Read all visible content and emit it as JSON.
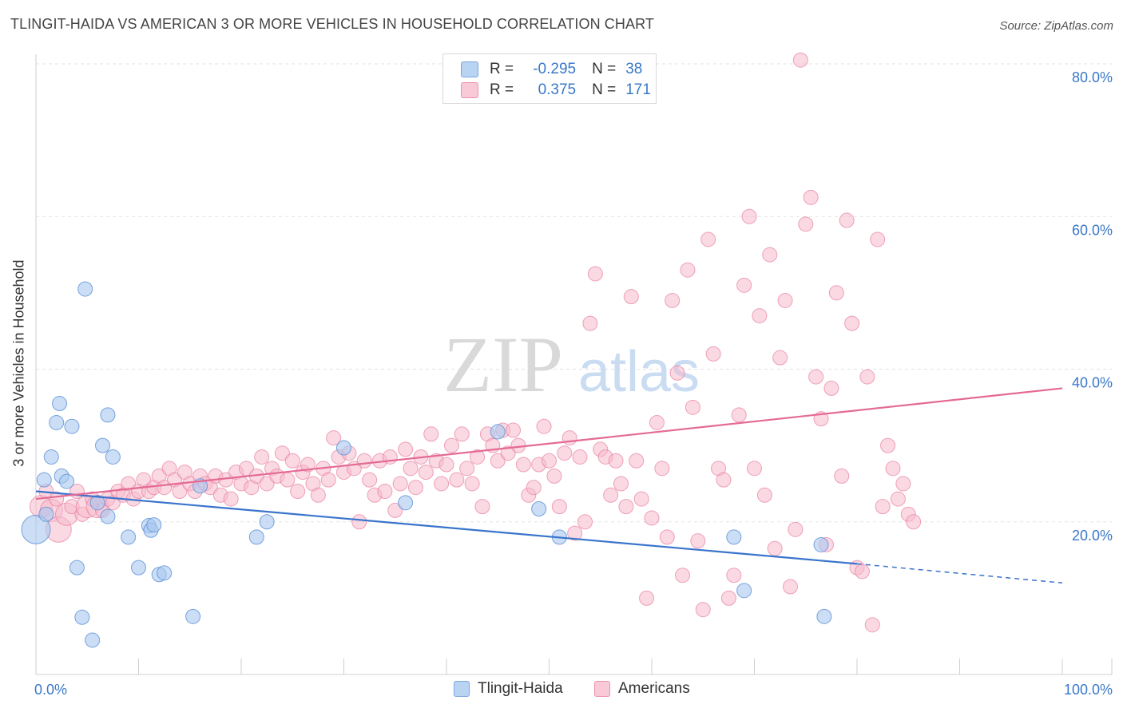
{
  "title": "TLINGIT-HAIDA VS AMERICAN 3 OR MORE VEHICLES IN HOUSEHOLD CORRELATION CHART",
  "source": "Source: ZipAtlas.com",
  "watermark": {
    "zip": "ZIP",
    "atlas": "atlas"
  },
  "legend_top": {
    "rows": [
      {
        "r_label": "R =",
        "r_value": "-0.295",
        "n_label": "N =",
        "n_value": "38"
      },
      {
        "r_label": "R =",
        "r_value": "0.375",
        "n_label": "N =",
        "n_value": "171"
      }
    ]
  },
  "legend_bottom": {
    "items": [
      "Tlingit-Haida",
      "Americans"
    ]
  },
  "colors": {
    "blue_fill": "#a9c8f0",
    "blue_stroke": "#5a8fd6",
    "blue_line": "#3a74cc",
    "pink_fill": "#f6b9cc",
    "pink_stroke": "#e87ea0",
    "pink_line": "#e46a95",
    "axis_text": "#3a78c8",
    "grid": "#e2e2e2"
  },
  "chart_data": {
    "type": "scatter",
    "title": "TLINGIT-HAIDA VS AMERICAN 3 OR MORE VEHICLES IN HOUSEHOLD CORRELATION CHART",
    "xlabel": "",
    "ylabel": "3 or more Vehicles in Household",
    "xlim": [
      0,
      100
    ],
    "ylim": [
      0,
      80
    ],
    "x_tick_labels": [
      "0.0%",
      "100.0%"
    ],
    "y_ticks": [
      20,
      40,
      60,
      80
    ],
    "y_tick_labels": [
      "20.0%",
      "40.0%",
      "60.0%",
      "80.0%"
    ],
    "grid": true,
    "legend_placement": "top-center",
    "series": [
      {
        "name": "Tlingit-Haida",
        "color": "#a9c8f0",
        "trend": {
          "x": [
            0,
            80
          ],
          "y": [
            24.0,
            14.5
          ],
          "dashed_to": [
            100,
            12.0
          ]
        },
        "points": [
          [
            0.0,
            19.0,
            18
          ],
          [
            0.8,
            25.5,
            9
          ],
          [
            1.0,
            21.0,
            9
          ],
          [
            1.5,
            28.5,
            9
          ],
          [
            2.0,
            33.0,
            9
          ],
          [
            2.3,
            35.5,
            9
          ],
          [
            2.5,
            26.0,
            9
          ],
          [
            3.0,
            25.3,
            9
          ],
          [
            3.5,
            32.5,
            9
          ],
          [
            4.0,
            14.0,
            9
          ],
          [
            4.5,
            7.5,
            9
          ],
          [
            4.8,
            50.5,
            9
          ],
          [
            5.5,
            4.5,
            9
          ],
          [
            6.0,
            22.5,
            9
          ],
          [
            6.5,
            30.0,
            9
          ],
          [
            7.0,
            34.0,
            9
          ],
          [
            7.0,
            20.7,
            9
          ],
          [
            7.5,
            28.5,
            9
          ],
          [
            9.0,
            18.0,
            9
          ],
          [
            10.0,
            14.0,
            9
          ],
          [
            11.0,
            19.5,
            9
          ],
          [
            11.2,
            18.9,
            9
          ],
          [
            11.5,
            19.6,
            9
          ],
          [
            12.0,
            13.1,
            9
          ],
          [
            12.5,
            13.3,
            9
          ],
          [
            15.3,
            7.6,
            9
          ],
          [
            16.0,
            24.7,
            9
          ],
          [
            21.5,
            18.0,
            9
          ],
          [
            22.5,
            20.0,
            9
          ],
          [
            30.0,
            29.7,
            9
          ],
          [
            36.0,
            22.5,
            9
          ],
          [
            45.0,
            31.8,
            9
          ],
          [
            49.0,
            21.7,
            9
          ],
          [
            51.0,
            18.0,
            9
          ],
          [
            68.0,
            18.0,
            9
          ],
          [
            69.0,
            11.0,
            9
          ],
          [
            76.5,
            17.0,
            9
          ],
          [
            76.8,
            7.6,
            9
          ]
        ]
      },
      {
        "name": "Americans",
        "color": "#f6b9cc",
        "trend": {
          "x": [
            0,
            100
          ],
          "y": [
            23.0,
            37.5
          ]
        },
        "points": [
          [
            0.5,
            22.0,
            14
          ],
          [
            1.0,
            24.0,
            9
          ],
          [
            1.5,
            21.5,
            14
          ],
          [
            2.0,
            23.0,
            9
          ],
          [
            2.2,
            19.0,
            16
          ],
          [
            3.0,
            21.0,
            14
          ],
          [
            3.5,
            22.0,
            9
          ],
          [
            4.0,
            24.0,
            9
          ],
          [
            4.5,
            21.0,
            9
          ],
          [
            5.0,
            22.0,
            14
          ],
          [
            5.5,
            23.0,
            9
          ],
          [
            6.0,
            22.0,
            14
          ],
          [
            6.5,
            21.5,
            9
          ],
          [
            7.0,
            23.0,
            9
          ],
          [
            7.5,
            22.5,
            9
          ],
          [
            8.0,
            24.0,
            9
          ],
          [
            8.5,
            23.5,
            9
          ],
          [
            9.0,
            25.0,
            9
          ],
          [
            9.5,
            23.0,
            9
          ],
          [
            10.0,
            24.0,
            9
          ],
          [
            10.5,
            25.5,
            9
          ],
          [
            11.0,
            24.0,
            9
          ],
          [
            11.5,
            24.5,
            9
          ],
          [
            12.0,
            26.0,
            9
          ],
          [
            12.5,
            24.5,
            9
          ],
          [
            13.0,
            27.0,
            9
          ],
          [
            13.5,
            25.5,
            9
          ],
          [
            14.0,
            24.0,
            9
          ],
          [
            14.5,
            26.5,
            9
          ],
          [
            15.0,
            25.0,
            9
          ],
          [
            15.5,
            24.0,
            9
          ],
          [
            16.0,
            26.0,
            9
          ],
          [
            16.5,
            25.0,
            9
          ],
          [
            17.0,
            24.5,
            9
          ],
          [
            17.5,
            26.0,
            9
          ],
          [
            18.0,
            23.5,
            9
          ],
          [
            18.5,
            25.5,
            9
          ],
          [
            19.0,
            23.0,
            9
          ],
          [
            19.5,
            26.5,
            9
          ],
          [
            20.0,
            25.0,
            9
          ],
          [
            20.5,
            27.0,
            9
          ],
          [
            21.0,
            24.5,
            9
          ],
          [
            21.5,
            26.0,
            9
          ],
          [
            22.0,
            28.5,
            9
          ],
          [
            22.5,
            25.0,
            9
          ],
          [
            23.0,
            27.0,
            9
          ],
          [
            23.5,
            26.0,
            9
          ],
          [
            24.0,
            29.0,
            9
          ],
          [
            24.5,
            25.5,
            9
          ],
          [
            25.0,
            28.0,
            9
          ],
          [
            25.5,
            24.0,
            9
          ],
          [
            26.0,
            26.5,
            9
          ],
          [
            26.5,
            27.5,
            9
          ],
          [
            27.0,
            25.0,
            9
          ],
          [
            27.5,
            23.5,
            9
          ],
          [
            28.0,
            27.0,
            9
          ],
          [
            28.5,
            25.5,
            9
          ],
          [
            29.0,
            31.0,
            9
          ],
          [
            29.5,
            28.5,
            9
          ],
          [
            30.0,
            26.5,
            9
          ],
          [
            30.5,
            29.0,
            9
          ],
          [
            31.0,
            27.0,
            9
          ],
          [
            31.5,
            20.0,
            9
          ],
          [
            32.0,
            28.0,
            9
          ],
          [
            32.5,
            25.5,
            9
          ],
          [
            33.0,
            23.5,
            9
          ],
          [
            33.5,
            28.0,
            9
          ],
          [
            34.0,
            24.0,
            9
          ],
          [
            34.5,
            28.5,
            9
          ],
          [
            35.0,
            21.5,
            9
          ],
          [
            35.5,
            25.0,
            9
          ],
          [
            36.0,
            29.5,
            9
          ],
          [
            36.5,
            27.0,
            9
          ],
          [
            37.0,
            24.5,
            9
          ],
          [
            37.5,
            28.5,
            9
          ],
          [
            38.0,
            26.5,
            9
          ],
          [
            38.5,
            31.5,
            9
          ],
          [
            39.0,
            28.0,
            9
          ],
          [
            39.5,
            25.0,
            9
          ],
          [
            40.0,
            27.5,
            9
          ],
          [
            40.5,
            30.0,
            9
          ],
          [
            41.0,
            25.5,
            9
          ],
          [
            41.5,
            31.5,
            9
          ],
          [
            42.0,
            27.0,
            9
          ],
          [
            42.5,
            25.0,
            9
          ],
          [
            43.0,
            28.5,
            9
          ],
          [
            43.5,
            22.0,
            9
          ],
          [
            44.0,
            31.5,
            9
          ],
          [
            44.5,
            30.0,
            9
          ],
          [
            45.0,
            28.0,
            9
          ],
          [
            45.5,
            32.0,
            9
          ],
          [
            46.0,
            29.0,
            9
          ],
          [
            46.5,
            32.0,
            9
          ],
          [
            47.0,
            30.0,
            9
          ],
          [
            47.5,
            27.5,
            9
          ],
          [
            48.0,
            23.5,
            9
          ],
          [
            48.5,
            24.5,
            9
          ],
          [
            49.0,
            27.5,
            9
          ],
          [
            49.5,
            32.5,
            9
          ],
          [
            50.0,
            28.0,
            9
          ],
          [
            50.5,
            26.0,
            9
          ],
          [
            51.0,
            22.0,
            9
          ],
          [
            51.5,
            29.0,
            9
          ],
          [
            52.0,
            31.0,
            9
          ],
          [
            52.5,
            18.5,
            9
          ],
          [
            53.0,
            28.5,
            9
          ],
          [
            53.5,
            20.0,
            9
          ],
          [
            54.0,
            46.0,
            9
          ],
          [
            54.5,
            52.5,
            9
          ],
          [
            55.0,
            29.5,
            9
          ],
          [
            55.5,
            28.5,
            9
          ],
          [
            56.0,
            23.5,
            9
          ],
          [
            56.5,
            28.0,
            9
          ],
          [
            57.0,
            25.0,
            9
          ],
          [
            57.5,
            22.0,
            9
          ],
          [
            58.0,
            49.5,
            9
          ],
          [
            58.5,
            28.0,
            9
          ],
          [
            59.0,
            23.0,
            9
          ],
          [
            59.5,
            10.0,
            9
          ],
          [
            60.0,
            20.5,
            9
          ],
          [
            60.5,
            33.0,
            9
          ],
          [
            61.0,
            27.0,
            9
          ],
          [
            61.5,
            18.0,
            9
          ],
          [
            62.0,
            49.0,
            9
          ],
          [
            62.5,
            39.5,
            9
          ],
          [
            63.0,
            13.0,
            9
          ],
          [
            63.5,
            53.0,
            9
          ],
          [
            64.0,
            35.0,
            9
          ],
          [
            64.5,
            17.5,
            9
          ],
          [
            65.0,
            8.5,
            9
          ],
          [
            65.5,
            57.0,
            9
          ],
          [
            66.0,
            42.0,
            9
          ],
          [
            66.5,
            27.0,
            9
          ],
          [
            67.0,
            25.5,
            9
          ],
          [
            67.5,
            10.0,
            9
          ],
          [
            68.0,
            13.0,
            9
          ],
          [
            68.5,
            34.0,
            9
          ],
          [
            69.0,
            51.0,
            9
          ],
          [
            69.5,
            60.0,
            9
          ],
          [
            70.0,
            27.0,
            9
          ],
          [
            70.5,
            47.0,
            9
          ],
          [
            71.0,
            23.5,
            9
          ],
          [
            71.5,
            55.0,
            9
          ],
          [
            72.0,
            16.5,
            9
          ],
          [
            72.5,
            41.5,
            9
          ],
          [
            73.0,
            49.0,
            9
          ],
          [
            73.5,
            11.5,
            9
          ],
          [
            74.0,
            19.0,
            9
          ],
          [
            74.5,
            80.5,
            9
          ],
          [
            75.0,
            59.0,
            9
          ],
          [
            75.5,
            62.5,
            9
          ],
          [
            76.0,
            39.0,
            9
          ],
          [
            76.5,
            33.5,
            9
          ],
          [
            77.0,
            17.0,
            9
          ],
          [
            77.5,
            37.5,
            9
          ],
          [
            78.0,
            50.0,
            9
          ],
          [
            78.5,
            26.0,
            9
          ],
          [
            79.0,
            59.5,
            9
          ],
          [
            79.5,
            46.0,
            9
          ],
          [
            80.0,
            14.0,
            9
          ],
          [
            80.5,
            13.5,
            9
          ],
          [
            81.0,
            39.0,
            9
          ],
          [
            81.5,
            6.5,
            9
          ],
          [
            82.0,
            57.0,
            9
          ],
          [
            82.5,
            22.0,
            9
          ],
          [
            83.0,
            30.0,
            9
          ],
          [
            83.5,
            27.0,
            9
          ],
          [
            84.0,
            23.0,
            9
          ],
          [
            84.5,
            25.0,
            9
          ],
          [
            85.0,
            21.0,
            9
          ],
          [
            85.5,
            20.0,
            9
          ]
        ]
      }
    ]
  }
}
